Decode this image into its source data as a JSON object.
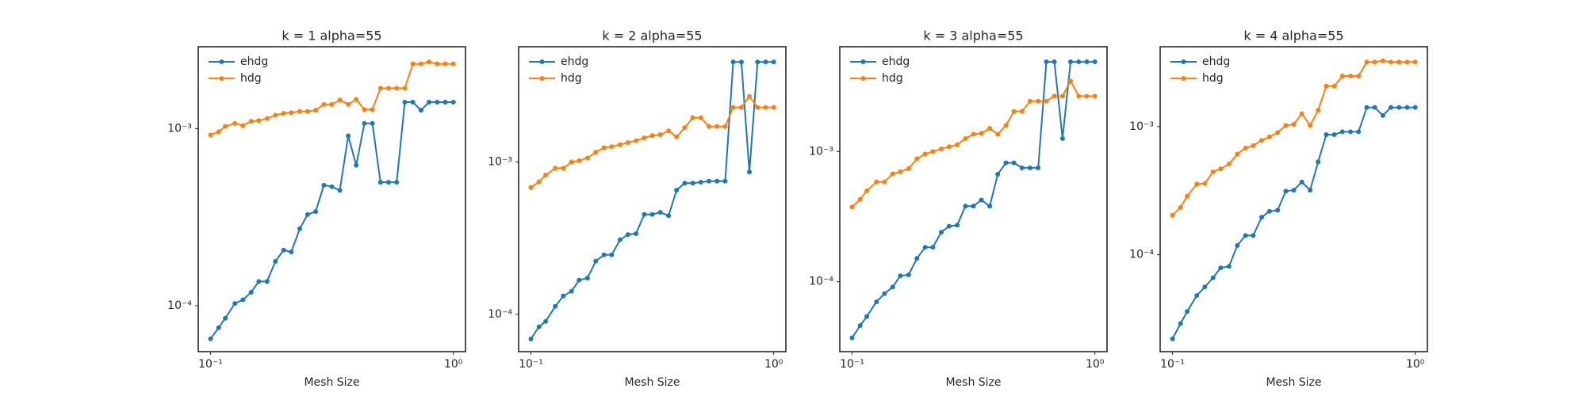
{
  "chart_data": [
    {
      "type": "line",
      "title": "k = 1 alpha=55",
      "xlabel": "Mesh Size",
      "xscale": "log",
      "yscale": "log",
      "legend": "upper left",
      "grid": false,
      "x": [
        0.1,
        0.108,
        0.115,
        0.126,
        0.136,
        0.147,
        0.158,
        0.171,
        0.185,
        0.2,
        0.215,
        0.233,
        0.251,
        0.271,
        0.293,
        0.316,
        0.341,
        0.369,
        0.398,
        0.43,
        0.464,
        0.501,
        0.541,
        0.584,
        0.631,
        0.681,
        0.736,
        0.794,
        0.858,
        0.926,
        1.0
      ],
      "xlim": [
        0.089,
        1.122
      ],
      "xticks": [
        {
          "value": 0.1,
          "label": "10⁻¹"
        },
        {
          "value": 1,
          "label": "10⁰"
        }
      ],
      "ylim": [
        5.5e-05,
        0.0029
      ],
      "yticks": [
        {
          "value": 0.0001,
          "label": "10⁻⁴"
        },
        {
          "value": 0.001,
          "label": "10⁻³"
        }
      ],
      "series": [
        {
          "name": "ehdg",
          "color": "#1f77b4",
          "values": [
            6.5e-05,
            7.5e-05,
            8.5e-05,
            0.000103,
            0.000108,
            0.000119,
            0.000137,
            0.000137,
            0.000178,
            0.000206,
            0.000201,
            0.000272,
            0.000327,
            0.00034,
            0.000479,
            0.00047,
            0.000448,
            0.00091,
            0.00062,
            0.00107,
            0.00107,
            0.000498,
            0.000498,
            0.000498,
            0.00141,
            0.00141,
            0.00127,
            0.00141,
            0.00141,
            0.00141,
            0.00141
          ]
        },
        {
          "name": "hdg",
          "color": "#ff7f0e",
          "values": [
            0.00092,
            0.00096,
            0.00103,
            0.00107,
            0.00104,
            0.0011,
            0.00111,
            0.00114,
            0.00119,
            0.00122,
            0.00123,
            0.00125,
            0.00125,
            0.00127,
            0.00137,
            0.00137,
            0.00145,
            0.00137,
            0.00146,
            0.00128,
            0.00128,
            0.00169,
            0.00169,
            0.00169,
            0.00169,
            0.00232,
            0.00232,
            0.00238,
            0.00232,
            0.00232,
            0.00232
          ]
        }
      ]
    },
    {
      "type": "line",
      "title": "k = 2 alpha=55",
      "xlabel": "Mesh Size",
      "xscale": "log",
      "yscale": "log",
      "legend": "upper left",
      "grid": false,
      "x": [
        0.1,
        0.108,
        0.115,
        0.126,
        0.136,
        0.147,
        0.158,
        0.171,
        0.185,
        0.2,
        0.215,
        0.233,
        0.251,
        0.271,
        0.293,
        0.316,
        0.341,
        0.369,
        0.398,
        0.43,
        0.464,
        0.501,
        0.541,
        0.584,
        0.631,
        0.681,
        0.736,
        0.794,
        0.858,
        0.926,
        1.0
      ],
      "xlim": [
        0.089,
        1.122
      ],
      "xticks": [
        {
          "value": 0.1,
          "label": "10⁻¹"
        },
        {
          "value": 1,
          "label": "10⁰"
        }
      ],
      "ylim": [
        5.7e-05,
        0.0057
      ],
      "yticks": [
        {
          "value": 0.0001,
          "label": "10⁻⁴"
        },
        {
          "value": 0.001,
          "label": "10⁻³"
        }
      ],
      "series": [
        {
          "name": "ehdg",
          "color": "#1f77b4",
          "values": [
            6.9e-05,
            8.3e-05,
            9e-05,
            0.000113,
            0.000132,
            0.000142,
            0.000168,
            0.000173,
            0.000224,
            0.000246,
            0.000246,
            0.000309,
            0.000334,
            0.000339,
            0.000453,
            0.000453,
            0.000467,
            0.000445,
            0.000653,
            0.000726,
            0.000726,
            0.000737,
            0.000748,
            0.000748,
            0.000748,
            0.00453,
            0.00453,
            0.00086,
            0.00453,
            0.00453,
            0.00453
          ]
        },
        {
          "name": "hdg",
          "color": "#ff7f0e",
          "values": [
            0.00068,
            0.00074,
            0.00082,
            0.00091,
            0.00091,
            0.001,
            0.00102,
            0.00106,
            0.00116,
            0.00124,
            0.00126,
            0.0013,
            0.00134,
            0.00138,
            0.00144,
            0.00149,
            0.00151,
            0.0016,
            0.00146,
            0.00168,
            0.00195,
            0.00195,
            0.00171,
            0.00171,
            0.00171,
            0.00228,
            0.00228,
            0.00269,
            0.00228,
            0.00228,
            0.00228
          ]
        }
      ]
    },
    {
      "type": "line",
      "title": "k = 3 alpha=55",
      "xlabel": "Mesh Size",
      "xscale": "log",
      "yscale": "log",
      "legend": "upper left",
      "grid": false,
      "x": [
        0.1,
        0.108,
        0.115,
        0.126,
        0.136,
        0.147,
        0.158,
        0.171,
        0.185,
        0.2,
        0.215,
        0.233,
        0.251,
        0.271,
        0.293,
        0.316,
        0.341,
        0.369,
        0.398,
        0.43,
        0.464,
        0.501,
        0.541,
        0.584,
        0.631,
        0.681,
        0.736,
        0.794,
        0.858,
        0.926,
        1.0
      ],
      "xlim": [
        0.089,
        1.122
      ],
      "xticks": [
        {
          "value": 0.1,
          "label": "10⁻¹"
        },
        {
          "value": 1,
          "label": "10⁰"
        }
      ],
      "ylim": [
        2.9e-05,
        0.0064
      ],
      "yticks": [
        {
          "value": 0.0001,
          "label": "10⁻⁴"
        },
        {
          "value": 0.001,
          "label": "10⁻³"
        }
      ],
      "series": [
        {
          "name": "ehdg",
          "color": "#1f77b4",
          "values": [
            3.7e-05,
            4.6e-05,
            5.4e-05,
            7e-05,
            8.1e-05,
            9.1e-05,
            0.000111,
            0.000113,
            0.000151,
            0.000184,
            0.000184,
            0.00024,
            0.000267,
            0.000272,
            0.000381,
            0.000381,
            0.000425,
            0.000381,
            0.00067,
            0.00082,
            0.00082,
            0.00075,
            0.00075,
            0.00075,
            0.0049,
            0.0049,
            0.00126,
            0.0049,
            0.0049,
            0.0049,
            0.0049
          ]
        },
        {
          "name": "hdg",
          "color": "#ff7f0e",
          "values": [
            0.000375,
            0.00043,
            0.0005,
            0.000585,
            0.000585,
            0.000675,
            0.0007,
            0.00074,
            0.00088,
            0.00096,
            0.001,
            0.00105,
            0.00109,
            0.00113,
            0.00126,
            0.00136,
            0.00138,
            0.00151,
            0.00136,
            0.00159,
            0.00204,
            0.00204,
            0.00244,
            0.00244,
            0.00244,
            0.00267,
            0.00267,
            0.00349,
            0.00267,
            0.00267,
            0.00267
          ]
        }
      ]
    },
    {
      "type": "line",
      "title": "k = 4 alpha=55",
      "xlabel": "Mesh Size",
      "xscale": "log",
      "yscale": "log",
      "legend": "upper left",
      "grid": false,
      "x": [
        0.1,
        0.108,
        0.115,
        0.126,
        0.136,
        0.147,
        0.158,
        0.171,
        0.185,
        0.2,
        0.215,
        0.233,
        0.251,
        0.271,
        0.293,
        0.316,
        0.341,
        0.369,
        0.398,
        0.43,
        0.464,
        0.501,
        0.541,
        0.584,
        0.631,
        0.681,
        0.736,
        0.794,
        0.858,
        0.926,
        1.0
      ],
      "xlim": [
        0.089,
        1.122
      ],
      "xticks": [
        {
          "value": 0.1,
          "label": "10⁻¹"
        },
        {
          "value": 1,
          "label": "10⁰"
        }
      ],
      "ylim": [
        1.75e-05,
        0.0042
      ],
      "yticks": [
        {
          "value": 0.0001,
          "label": "10⁻⁴"
        },
        {
          "value": 0.001,
          "label": "10⁻³"
        }
      ],
      "series": [
        {
          "name": "ehdg",
          "color": "#1f77b4",
          "values": [
            2.2e-05,
            2.9e-05,
            3.6e-05,
            4.8e-05,
            5.6e-05,
            6.6e-05,
            7.9e-05,
            8.1e-05,
            0.000118,
            0.000141,
            0.000141,
            0.000196,
            0.000218,
            0.000222,
            0.000313,
            0.000319,
            0.000369,
            0.000319,
            0.00053,
            0.000865,
            0.000865,
            0.00091,
            0.00091,
            0.00091,
            0.00141,
            0.00141,
            0.00122,
            0.00141,
            0.00141,
            0.00141,
            0.00141
          ]
        },
        {
          "name": "hdg",
          "color": "#ff7f0e",
          "values": [
            0.000203,
            0.000234,
            0.000286,
            0.000356,
            0.00036,
            0.000443,
            0.000467,
            0.00051,
            0.00061,
            0.00068,
            0.00071,
            0.00078,
            0.00083,
            0.000897,
            0.00102,
            0.00104,
            0.00126,
            0.00102,
            0.00134,
            0.00207,
            0.00207,
            0.00248,
            0.00248,
            0.00248,
            0.00319,
            0.00319,
            0.00326,
            0.00319,
            0.00319,
            0.00319,
            0.00319
          ]
        }
      ]
    }
  ]
}
